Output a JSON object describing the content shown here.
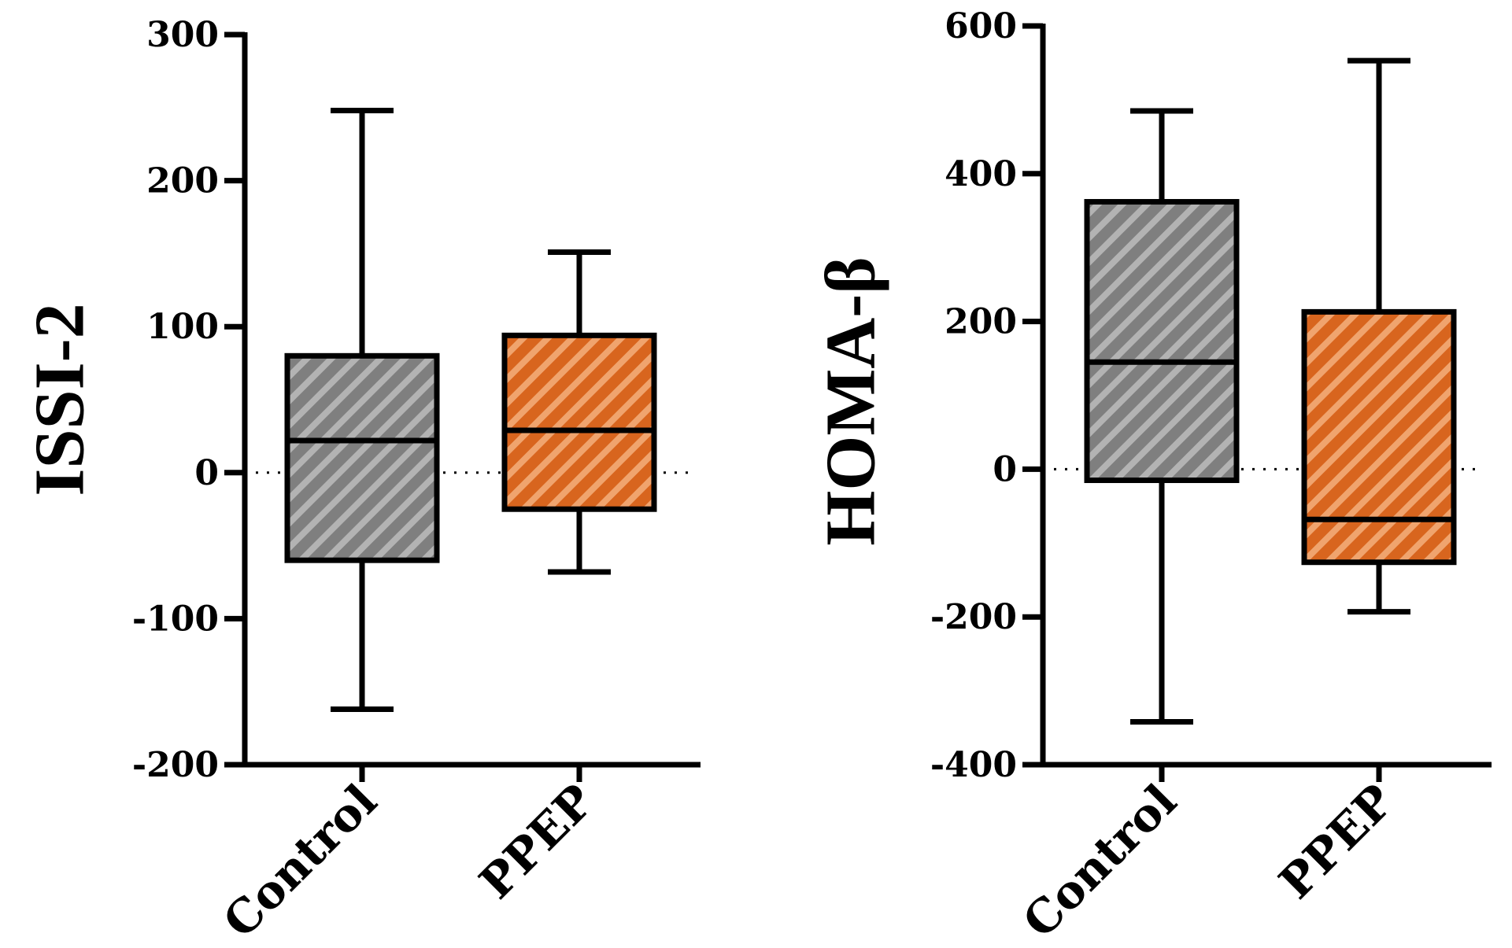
{
  "chart_data": [
    {
      "type": "box",
      "title": "",
      "xlabel": "",
      "ylabel": "ISSI-2",
      "ylim": [
        -200,
        300
      ],
      "yticks": [
        -200,
        -100,
        0,
        100,
        200,
        300
      ],
      "ytick_labels": [
        "-200",
        "-100",
        "0",
        "100",
        "200",
        "300"
      ],
      "reference_line": 0,
      "categories": [
        "Control",
        "PPEP"
      ],
      "series": [
        {
          "name": "Control",
          "color": "#808080",
          "stripe": "#b0b0b0",
          "min": -162,
          "q1": -60,
          "median": 22,
          "q3": 80,
          "max": 248
        },
        {
          "name": "PPEP",
          "color": "#d9661f",
          "stripe": "#f0a06a",
          "min": -68,
          "q1": -25,
          "median": 29,
          "q3": 94,
          "max": 151
        }
      ]
    },
    {
      "type": "box",
      "title": "",
      "xlabel": "",
      "ylabel": "HOMA-β",
      "ylim": [
        -400,
        600
      ],
      "yticks": [
        -400,
        -200,
        0,
        200,
        400,
        600
      ],
      "ytick_labels": [
        "-400",
        "-200",
        "0",
        "200",
        "400",
        "600"
      ],
      "reference_line": 0,
      "categories": [
        "Control",
        "PPEP"
      ],
      "series": [
        {
          "name": "Control",
          "color": "#808080",
          "stripe": "#b0b0b0",
          "min": -342,
          "q1": -15,
          "median": 145,
          "q3": 362,
          "max": 485
        },
        {
          "name": "PPEP",
          "color": "#d9661f",
          "stripe": "#f0a06a",
          "min": -193,
          "q1": -126,
          "median": -68,
          "q3": 213,
          "max": 553
        }
      ]
    }
  ]
}
